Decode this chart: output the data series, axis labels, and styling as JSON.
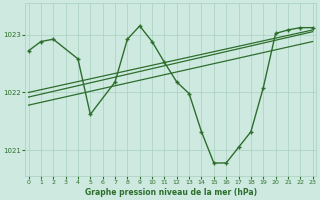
{
  "bg_color": "#ceeae0",
  "grid_color": "#a8cfc0",
  "line_color": "#2d6e2d",
  "xlabel": "Graphe pression niveau de la mer (hPa)",
  "ylim": [
    1020.55,
    1023.55
  ],
  "xlim": [
    -0.3,
    23.3
  ],
  "yticks": [
    1021,
    1022,
    1023
  ],
  "xticks": [
    0,
    1,
    2,
    3,
    4,
    5,
    6,
    7,
    8,
    9,
    10,
    11,
    12,
    13,
    14,
    15,
    16,
    17,
    18,
    19,
    20,
    21,
    22,
    23
  ],
  "main_x": [
    0,
    1,
    2,
    4,
    5,
    7,
    8,
    9,
    10,
    11,
    12,
    13,
    14,
    15,
    16,
    17,
    18,
    19,
    20,
    21,
    22,
    23
  ],
  "main_y": [
    1022.72,
    1022.88,
    1022.92,
    1022.58,
    1021.62,
    1022.18,
    1022.92,
    1023.15,
    1022.88,
    1022.52,
    1022.18,
    1021.98,
    1021.32,
    1020.78,
    1020.78,
    1021.05,
    1021.32,
    1022.08,
    1023.02,
    1023.08,
    1023.12,
    1023.12
  ],
  "trend1_x": [
    0,
    23
  ],
  "trend1_y": [
    1021.92,
    1023.05
  ],
  "trend2_x": [
    0,
    23
  ],
  "trend2_y": [
    1022.0,
    1023.08
  ],
  "trend3_x": [
    0,
    23
  ],
  "trend3_y": [
    1021.78,
    1022.88
  ]
}
